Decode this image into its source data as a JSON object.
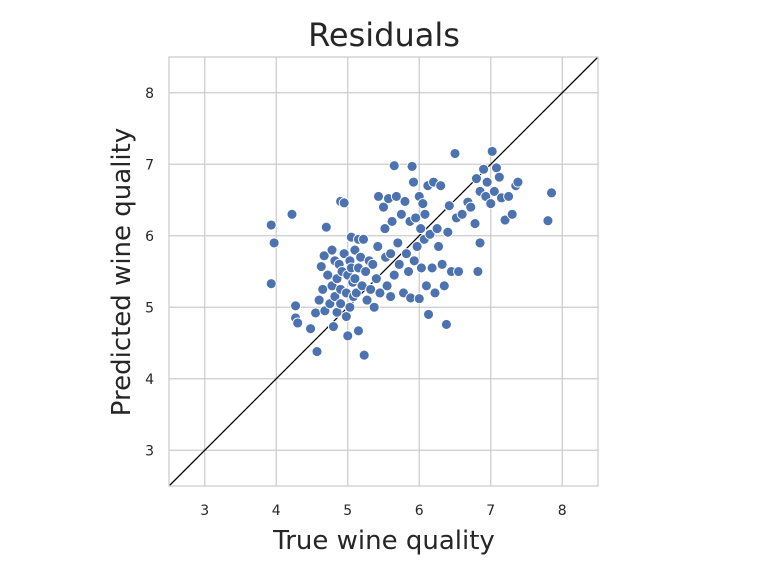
{
  "chart_data": {
    "type": "scatter",
    "title": "Residuals",
    "xlabel": "True wine quality",
    "ylabel": "Predicted wine quality",
    "xlim": [
      2.5,
      8.5
    ],
    "ylim": [
      2.5,
      8.5
    ],
    "xticks": [
      "3",
      "4",
      "5",
      "6",
      "7",
      "8"
    ],
    "yticks": [
      "3",
      "4",
      "5",
      "6",
      "7",
      "8"
    ],
    "grid": true,
    "reference_line": "y = x",
    "colors": {
      "points": "#4c72b0",
      "reference_line": "#000000",
      "grid": "#cccccc"
    },
    "series": [
      {
        "points": [
          [
            3.93,
            6.15
          ],
          [
            3.97,
            5.9
          ],
          [
            3.93,
            5.33
          ],
          [
            4.22,
            6.3
          ],
          [
            4.27,
            5.02
          ],
          [
            4.27,
            4.85
          ],
          [
            4.3,
            4.78
          ],
          [
            4.48,
            4.7
          ],
          [
            4.55,
            4.92
          ],
          [
            4.57,
            4.38
          ],
          [
            4.6,
            5.1
          ],
          [
            4.63,
            5.57
          ],
          [
            4.65,
            5.25
          ],
          [
            4.67,
            5.72
          ],
          [
            4.68,
            4.95
          ],
          [
            4.7,
            6.12
          ],
          [
            4.72,
            5.45
          ],
          [
            4.75,
            5.05
          ],
          [
            4.78,
            5.8
          ],
          [
            4.78,
            5.3
          ],
          [
            4.8,
            4.73
          ],
          [
            4.82,
            5.65
          ],
          [
            4.82,
            5.15
          ],
          [
            4.85,
            5.4
          ],
          [
            4.85,
            4.93
          ],
          [
            4.88,
            5.6
          ],
          [
            4.9,
            6.48
          ],
          [
            4.9,
            5.25
          ],
          [
            4.9,
            5.05
          ],
          [
            4.92,
            5.5
          ],
          [
            4.95,
            6.46
          ],
          [
            4.95,
            5.75
          ],
          [
            4.98,
            5.2
          ],
          [
            4.98,
            4.87
          ],
          [
            5.0,
            5.45
          ],
          [
            5.0,
            4.6
          ],
          [
            5.03,
            5.65
          ],
          [
            5.03,
            5.0
          ],
          [
            5.05,
            5.98
          ],
          [
            5.05,
            5.55
          ],
          [
            5.07,
            5.35
          ],
          [
            5.08,
            5.15
          ],
          [
            5.1,
            5.8
          ],
          [
            5.1,
            5.4
          ],
          [
            5.12,
            5.2
          ],
          [
            5.15,
            5.95
          ],
          [
            5.15,
            5.55
          ],
          [
            5.15,
            4.67
          ],
          [
            5.18,
            5.7
          ],
          [
            5.2,
            5.3
          ],
          [
            5.22,
            5.95
          ],
          [
            5.23,
            4.33
          ],
          [
            5.25,
            5.5
          ],
          [
            5.27,
            5.1
          ],
          [
            5.3,
            5.65
          ],
          [
            5.32,
            5.25
          ],
          [
            5.35,
            5.6
          ],
          [
            5.37,
            5.0
          ],
          [
            5.4,
            5.4
          ],
          [
            5.42,
            5.85
          ],
          [
            5.43,
            6.55
          ],
          [
            5.45,
            5.2
          ],
          [
            5.5,
            6.4
          ],
          [
            5.52,
            6.1
          ],
          [
            5.53,
            5.7
          ],
          [
            5.55,
            5.3
          ],
          [
            5.57,
            6.52
          ],
          [
            5.6,
            5.15
          ],
          [
            5.6,
            5.75
          ],
          [
            5.62,
            6.2
          ],
          [
            5.65,
            6.98
          ],
          [
            5.65,
            5.45
          ],
          [
            5.68,
            6.55
          ],
          [
            5.7,
            5.9
          ],
          [
            5.72,
            5.6
          ],
          [
            5.75,
            6.3
          ],
          [
            5.78,
            5.2
          ],
          [
            5.8,
            6.48
          ],
          [
            5.82,
            5.75
          ],
          [
            5.85,
            5.5
          ],
          [
            5.87,
            6.2
          ],
          [
            5.88,
            5.13
          ],
          [
            5.9,
            6.97
          ],
          [
            5.92,
            6.75
          ],
          [
            5.93,
            5.65
          ],
          [
            5.95,
            6.25
          ],
          [
            5.97,
            5.85
          ],
          [
            6.0,
            6.55
          ],
          [
            6.0,
            5.12
          ],
          [
            6.02,
            6.1
          ],
          [
            6.03,
            5.55
          ],
          [
            6.05,
            6.45
          ],
          [
            6.07,
            5.95
          ],
          [
            6.08,
            6.3
          ],
          [
            6.1,
            5.3
          ],
          [
            6.12,
            6.7
          ],
          [
            6.13,
            4.9
          ],
          [
            6.15,
            6.02
          ],
          [
            6.18,
            5.55
          ],
          [
            6.2,
            6.75
          ],
          [
            6.22,
            5.2
          ],
          [
            6.25,
            6.1
          ],
          [
            6.27,
            5.85
          ],
          [
            6.3,
            6.7
          ],
          [
            6.32,
            5.6
          ],
          [
            6.35,
            5.3
          ],
          [
            6.38,
            4.76
          ],
          [
            6.4,
            6.05
          ],
          [
            6.42,
            6.42
          ],
          [
            6.45,
            5.5
          ],
          [
            6.5,
            7.15
          ],
          [
            6.52,
            6.25
          ],
          [
            6.55,
            5.5
          ],
          [
            6.6,
            6.3
          ],
          [
            6.68,
            6.47
          ],
          [
            6.72,
            6.4
          ],
          [
            6.78,
            6.17
          ],
          [
            6.8,
            6.8
          ],
          [
            6.82,
            5.5
          ],
          [
            6.85,
            5.9
          ],
          [
            6.85,
            6.62
          ],
          [
            6.9,
            6.93
          ],
          [
            6.93,
            6.55
          ],
          [
            6.95,
            6.75
          ],
          [
            7.0,
            6.45
          ],
          [
            7.02,
            7.18
          ],
          [
            7.05,
            6.62
          ],
          [
            7.08,
            6.95
          ],
          [
            7.12,
            6.82
          ],
          [
            7.15,
            6.53
          ],
          [
            7.2,
            6.22
          ],
          [
            7.25,
            6.55
          ],
          [
            7.3,
            6.3
          ],
          [
            7.35,
            6.7
          ],
          [
            7.38,
            6.75
          ],
          [
            7.8,
            6.21
          ],
          [
            7.85,
            6.6
          ]
        ]
      }
    ]
  }
}
